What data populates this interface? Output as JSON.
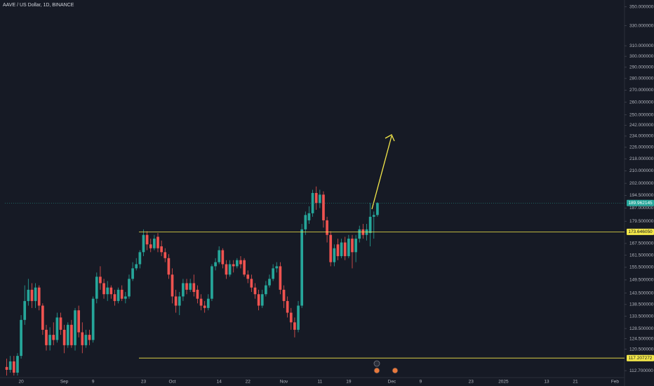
{
  "chart_data": {
    "type": "candlestick",
    "title": "AAVE / US Dollar, 1D, BINANCE",
    "log_y": true,
    "up_color": "#26a69a",
    "down_color": "#ef5350",
    "ylim": [
      110.3,
      357.5
    ],
    "yticks": [
      {
        "value": 350,
        "label": "350.000000"
      },
      {
        "value": 330,
        "label": "330.000000"
      },
      {
        "value": 310,
        "label": "310.000000"
      },
      {
        "value": 300,
        "label": "300.000000"
      },
      {
        "value": 290,
        "label": "290.000000"
      },
      {
        "value": 280,
        "label": "280.000000"
      },
      {
        "value": 270,
        "label": "270.000000"
      },
      {
        "value": 260,
        "label": "260.000000"
      },
      {
        "value": 250,
        "label": "250.000000"
      },
      {
        "value": 242,
        "label": "242.000000"
      },
      {
        "value": 234,
        "label": "234.000000"
      },
      {
        "value": 226,
        "label": "226.000000"
      },
      {
        "value": 218,
        "label": "218.000000"
      },
      {
        "value": 210,
        "label": "210.000000"
      },
      {
        "value": 202,
        "label": "202.000000"
      },
      {
        "value": 194.5,
        "label": "194.500000"
      },
      {
        "value": 187,
        "label": "187.000000"
      },
      {
        "value": 179.5,
        "label": "179.500000"
      },
      {
        "value": 167.5,
        "label": "167.500000"
      },
      {
        "value": 161.5,
        "label": "161.500000"
      },
      {
        "value": 155.5,
        "label": "155.500000"
      },
      {
        "value": 149.5,
        "label": "149.500000"
      },
      {
        "value": 143.5,
        "label": "143.500000"
      },
      {
        "value": 138.5,
        "label": "138.500000"
      },
      {
        "value": 133.5,
        "label": "133.500000"
      },
      {
        "value": 128.5,
        "label": "128.500000"
      },
      {
        "value": 124.5,
        "label": "124.500000"
      },
      {
        "value": 120.5,
        "label": "120.500000"
      },
      {
        "value": 112.7,
        "label": "112.700000"
      }
    ],
    "levels": [
      {
        "value": 173.64605,
        "label": "173.646050",
        "color": "#f5e94a"
      },
      {
        "value": 117.207272,
        "label": "117.207272",
        "color": "#f5e94a"
      }
    ],
    "last_price": {
      "value": 189.962145,
      "label": "189.962145"
    },
    "categories": [
      null,
      null,
      null,
      null,
      "20",
      null,
      null,
      null,
      null,
      null,
      null,
      null,
      null,
      null,
      null,
      null,
      "Sep",
      null,
      null,
      null,
      null,
      null,
      null,
      null,
      "9",
      null,
      null,
      null,
      null,
      null,
      null,
      null,
      null,
      null,
      null,
      null,
      null,
      null,
      "23",
      null,
      null,
      null,
      null,
      null,
      null,
      null,
      "Oct",
      null,
      null,
      null,
      null,
      null,
      null,
      null,
      null,
      null,
      null,
      null,
      null,
      "14",
      null,
      null,
      null,
      null,
      null,
      null,
      null,
      "22",
      null,
      null,
      null,
      null,
      null,
      null,
      null,
      null,
      null,
      "Nov",
      null,
      null,
      null,
      null,
      null,
      null,
      null,
      null,
      null,
      "11",
      null,
      null,
      null,
      null,
      null,
      null,
      null,
      "19",
      null,
      null,
      null,
      null,
      null,
      null,
      null,
      null,
      null,
      null,
      null,
      "Dec",
      null,
      null,
      null,
      null,
      null,
      null,
      null,
      "9",
      null,
      null,
      null,
      null,
      null,
      null,
      null,
      null,
      null,
      null,
      null,
      null,
      null,
      "23",
      null,
      null,
      null,
      null,
      null,
      null,
      null,
      null,
      "2025",
      null,
      null,
      null,
      null,
      null,
      null,
      null,
      null,
      null,
      null,
      null,
      "13",
      null,
      null,
      null,
      null,
      null,
      null,
      null,
      "21",
      null,
      null,
      null,
      null,
      null,
      null,
      null,
      null,
      null,
      null,
      "Feb"
    ],
    "open": [
      114,
      113,
      116,
      112,
      118,
      132,
      140,
      145,
      140,
      146,
      138,
      128,
      122,
      126,
      124,
      133,
      128,
      122,
      130,
      122,
      136,
      127,
      122,
      126,
      124,
      141,
      151,
      148,
      143,
      146,
      143,
      140,
      145,
      141,
      142,
      150,
      155,
      157,
      163,
      172,
      167,
      165,
      171,
      166,
      163,
      160,
      152,
      142,
      138,
      142,
      148,
      145,
      148,
      145,
      141,
      138,
      137,
      141,
      156,
      158,
      164,
      157,
      152,
      157,
      156,
      159,
      159,
      152,
      150,
      146,
      143,
      138,
      143,
      147,
      150,
      155,
      156,
      145,
      140,
      135,
      131,
      128,
      138,
      175,
      180,
      184,
      196,
      190,
      195,
      180,
      172,
      158,
      167,
      161,
      168,
      161,
      170,
      163,
      170,
      175,
      172,
      173,
      182,
      183,
      null,
      null,
      null,
      null,
      null,
      null,
      null,
      null,
      null,
      null,
      null,
      null,
      null,
      null,
      null,
      null,
      null,
      null,
      null,
      null,
      null,
      null,
      null,
      null,
      null,
      null,
      null,
      null,
      null,
      null,
      null,
      null,
      null,
      null,
      null,
      null,
      null,
      null,
      null,
      null,
      null,
      null,
      null,
      null,
      null,
      null,
      null,
      null,
      null,
      null,
      null,
      null,
      null,
      null,
      null,
      null,
      null,
      null,
      null,
      null,
      null,
      null,
      null,
      null,
      null,
      null
    ],
    "high": [
      117,
      118,
      118,
      119,
      134,
      147,
      150,
      148,
      148,
      147,
      139,
      130,
      129,
      131,
      135,
      135,
      130,
      131,
      132,
      137,
      138,
      131,
      128,
      128,
      142,
      153,
      156,
      150,
      149,
      147,
      145,
      146,
      147,
      144,
      152,
      158,
      160,
      164,
      175,
      174,
      170,
      172,
      173,
      169,
      165,
      162,
      155,
      145,
      144,
      150,
      150,
      150,
      152,
      147,
      143,
      140,
      143,
      157,
      160,
      166,
      165,
      159,
      159,
      159,
      160,
      161,
      160,
      154,
      152,
      148,
      145,
      145,
      149,
      152,
      157,
      158,
      158,
      147,
      142,
      137,
      133,
      140,
      178,
      185,
      188,
      198,
      200,
      198,
      197,
      182,
      174,
      167,
      170,
      170,
      171,
      172,
      172,
      172,
      177,
      178,
      178,
      190,
      185,
      190.5,
      null,
      null,
      null,
      null,
      null,
      null,
      null,
      null,
      null,
      null,
      null,
      null,
      null,
      null,
      null,
      null,
      null,
      null,
      null,
      null,
      null,
      null,
      null,
      null,
      null,
      null,
      null,
      null,
      null,
      null,
      null,
      null,
      null,
      null,
      null,
      null,
      null,
      null,
      null,
      null,
      null,
      null,
      null,
      null,
      null,
      null,
      null,
      null,
      null,
      null,
      null,
      null,
      null,
      null,
      null,
      null,
      null,
      null,
      null,
      null,
      null,
      null,
      null,
      null,
      null,
      null
    ],
    "low": [
      111,
      112,
      111,
      111,
      117,
      130,
      138,
      137,
      137,
      136,
      126,
      120,
      120,
      122,
      123,
      126,
      119,
      121,
      121,
      120,
      125,
      119,
      121,
      122,
      123,
      139,
      145,
      141,
      140,
      141,
      138,
      139,
      140,
      139,
      141,
      149,
      154,
      155,
      161,
      164,
      163,
      164,
      163,
      161,
      158,
      150,
      139,
      135,
      134,
      140,
      143,
      144,
      142,
      139,
      136,
      135,
      136,
      140,
      154,
      157,
      155,
      150,
      151,
      153,
      155,
      155,
      151,
      148,
      144,
      141,
      136,
      137,
      142,
      146,
      149,
      153,
      143,
      137,
      133,
      128,
      125,
      127,
      137,
      172,
      178,
      182,
      186,
      187,
      176,
      168,
      156,
      156,
      159,
      160,
      159,
      160,
      155,
      158,
      168,
      170,
      169,
      166,
      170,
      182,
      null,
      null,
      null,
      null,
      null,
      null,
      null,
      null,
      null,
      null,
      null,
      null,
      null,
      null,
      null,
      null,
      null,
      null,
      null,
      null,
      null,
      null,
      null,
      null,
      null,
      null,
      null,
      null,
      null,
      null,
      null,
      null,
      null,
      null,
      null,
      null,
      null,
      null,
      null,
      null,
      null,
      null,
      null,
      null,
      null,
      null,
      null,
      null,
      null,
      null,
      null,
      null,
      null,
      null,
      null,
      null,
      null,
      null,
      null,
      null,
      null,
      null,
      null,
      null,
      null,
      null
    ],
    "close": [
      113,
      116,
      112,
      118,
      132,
      140,
      145,
      140,
      146,
      138,
      128,
      122,
      126,
      124,
      133,
      128,
      122,
      130,
      122,
      136,
      127,
      122,
      126,
      124,
      141,
      151,
      148,
      143,
      146,
      143,
      140,
      145,
      141,
      142,
      150,
      155,
      157,
      163,
      172,
      167,
      165,
      170,
      165,
      163,
      160,
      152,
      142,
      138,
      142,
      148,
      145,
      148,
      144,
      141,
      138,
      137,
      141,
      156,
      158,
      164,
      157,
      152,
      157,
      156,
      159,
      157,
      152,
      150,
      146,
      143,
      138,
      143,
      147,
      150,
      155,
      156,
      145,
      140,
      135,
      131,
      128,
      138,
      175,
      183,
      184,
      196,
      190,
      195,
      180,
      172,
      158,
      165,
      161,
      168,
      161,
      170,
      163,
      170,
      175,
      172,
      175,
      182,
      183,
      189.962145,
      null,
      null,
      null,
      null,
      null,
      null,
      null,
      null,
      null,
      null,
      null,
      null,
      null,
      null,
      null,
      null,
      null,
      null,
      null,
      null,
      null,
      null,
      null,
      null,
      null,
      null,
      null,
      null,
      null,
      null,
      null,
      null,
      null,
      null,
      null,
      null,
      null,
      null,
      null,
      null,
      null,
      null,
      null,
      null,
      null,
      null,
      null,
      null,
      null,
      null,
      null,
      null,
      null,
      null,
      null,
      null,
      null,
      null,
      null,
      null,
      null,
      null,
      null,
      null,
      null,
      null
    ]
  }
}
